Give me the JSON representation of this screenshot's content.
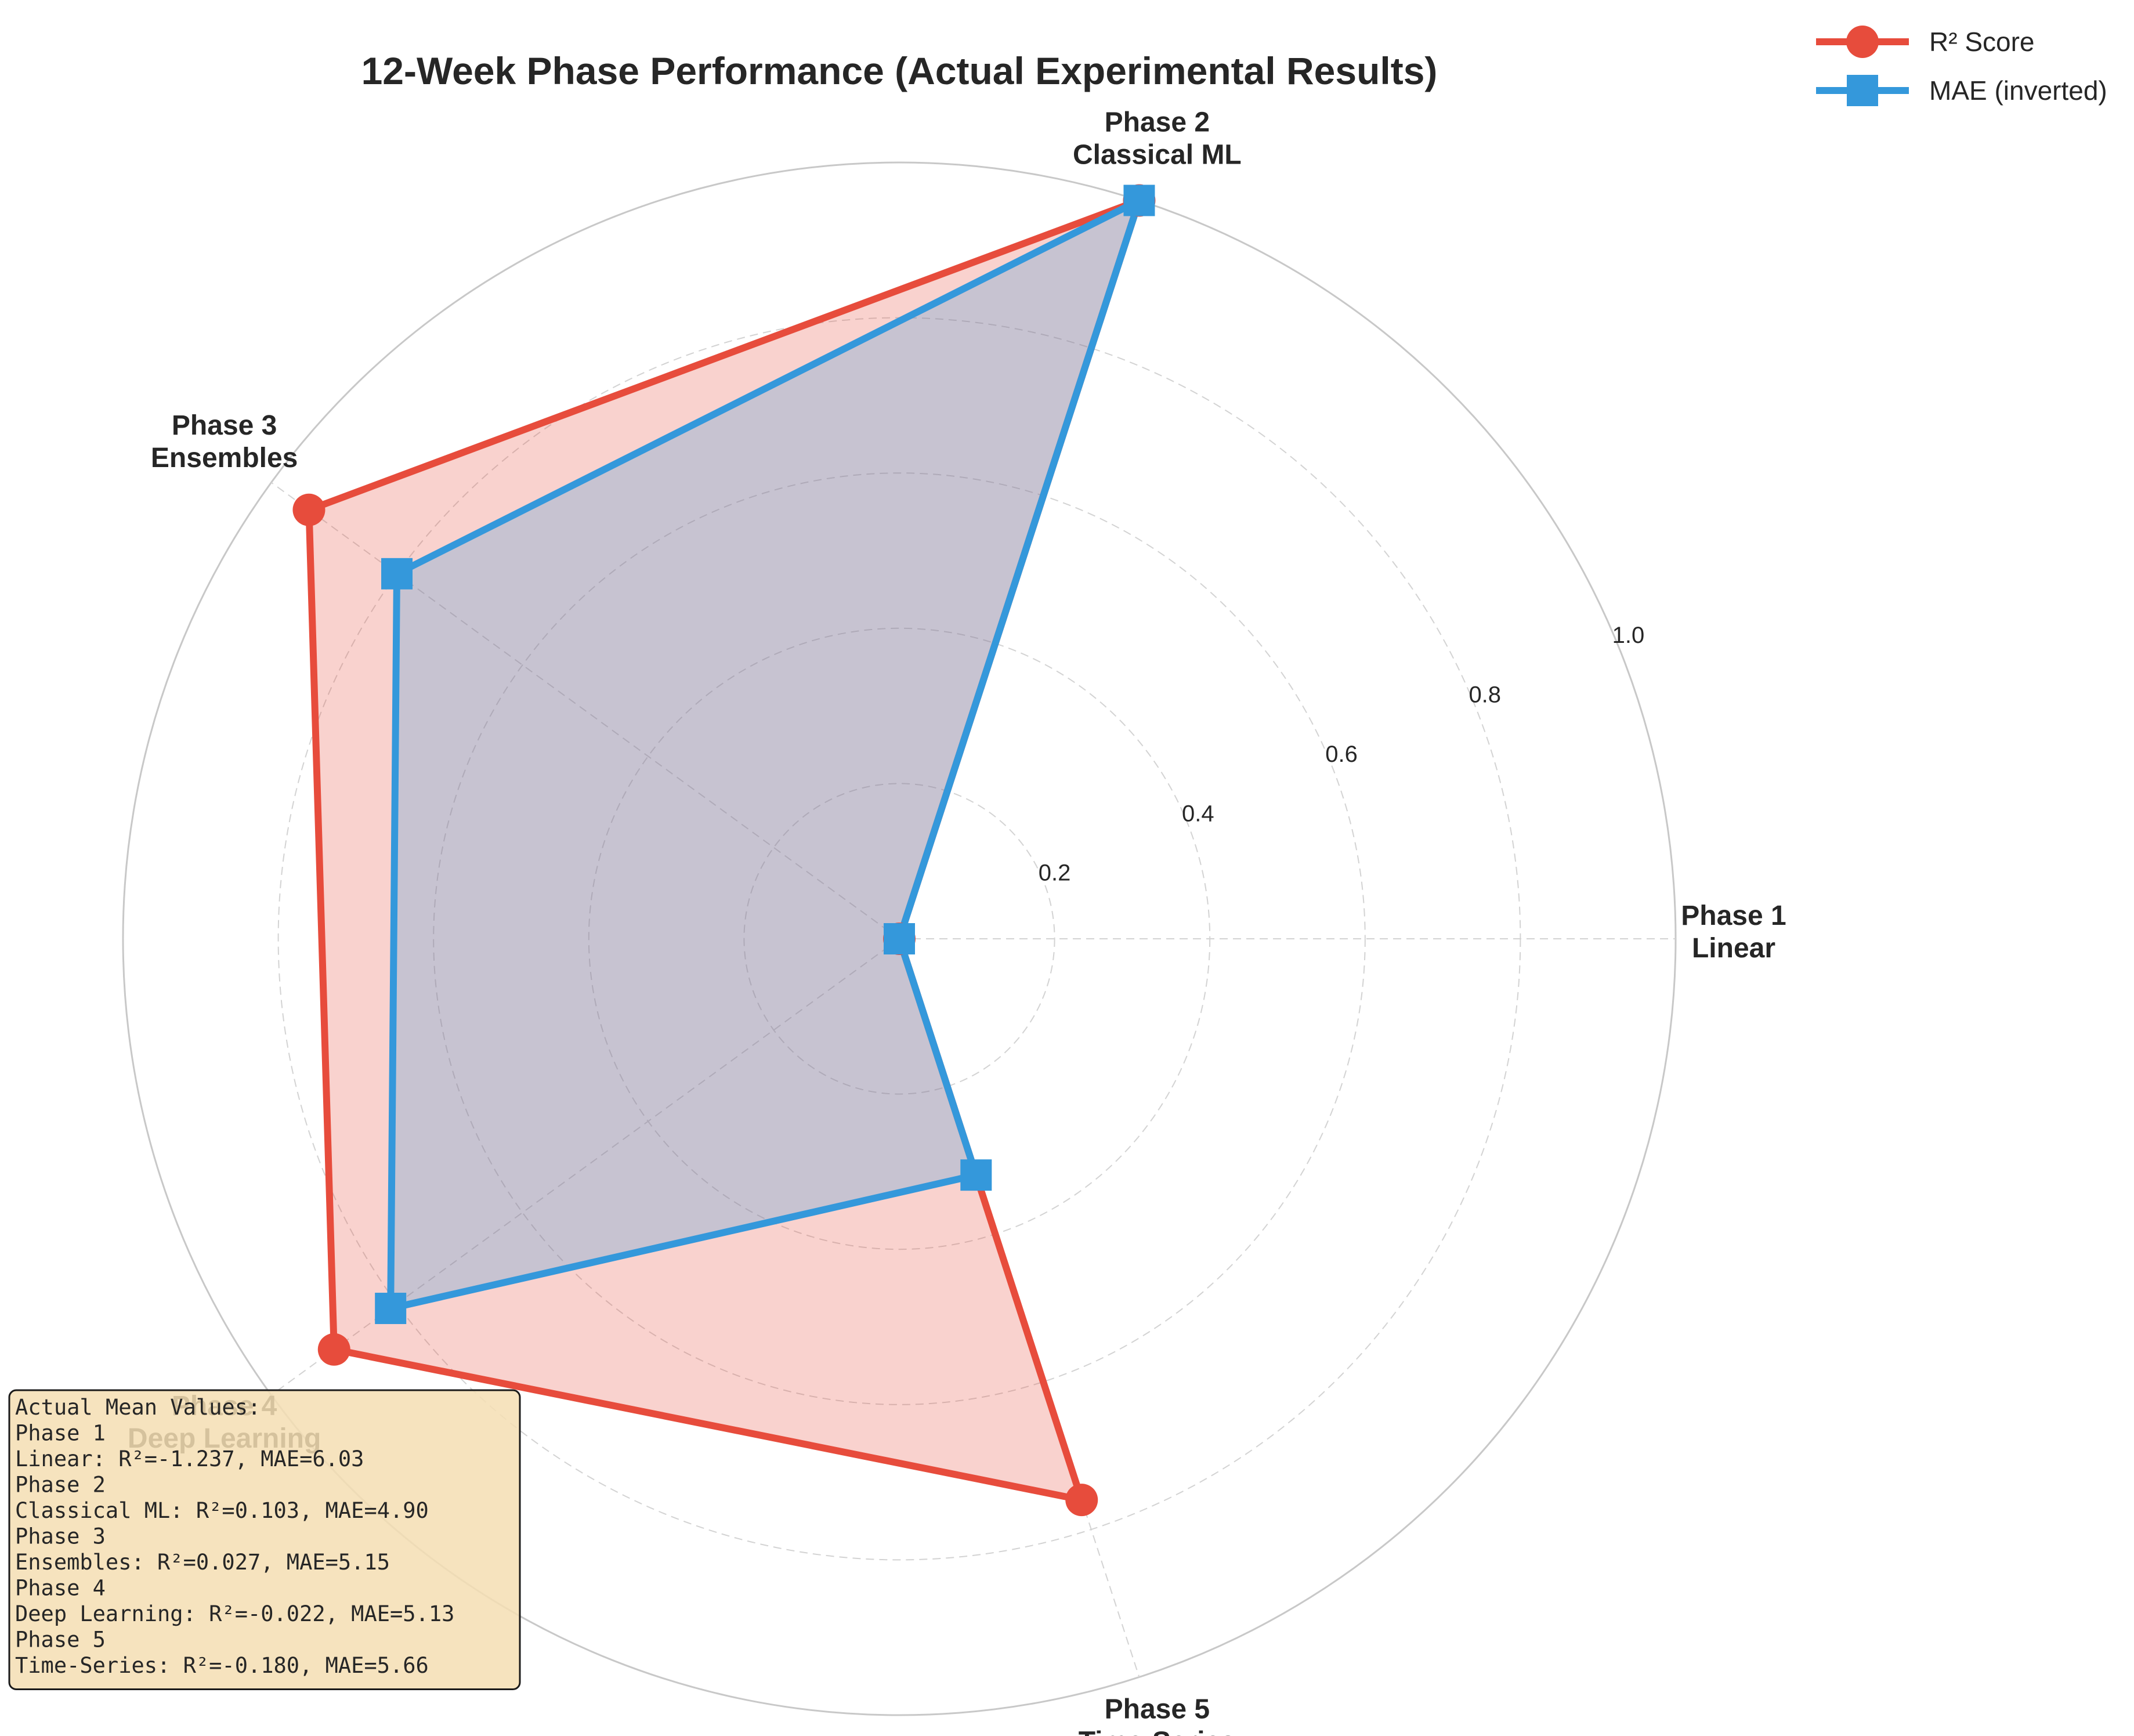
{
  "chart_data": {
    "type": "radar",
    "title": "12-Week Phase Performance (Actual Experimental Results)",
    "categories": [
      [
        "Phase 1",
        "Linear"
      ],
      [
        "Phase 2",
        "Classical ML"
      ],
      [
        "Phase 3",
        "Ensembles"
      ],
      [
        "Phase 4",
        "Deep Learning"
      ],
      [
        "Phase 5",
        "Time-Series"
      ]
    ],
    "radial_ticks": [
      "0.2",
      "0.4",
      "0.6",
      "0.8",
      "1.0"
    ],
    "radial_tick_values": [
      0.2,
      0.4,
      0.6,
      0.8,
      1.0
    ],
    "rlim": [
      0,
      1.0
    ],
    "grid": true,
    "legend_position": "top-right",
    "series": [
      {
        "name": "R² Score",
        "marker": "circle",
        "color": "#e74c3c",
        "values": [
          0.0,
          1.0,
          0.94,
          0.9,
          0.76
        ]
      },
      {
        "name": "MAE (inverted)",
        "marker": "square",
        "color": "#3498db",
        "values": [
          0.0,
          1.0,
          0.8,
          0.81,
          0.32
        ]
      }
    ],
    "annotation": {
      "lines": [
        "Actual Mean Values:",
        "Phase 1",
        "Linear: R²=-1.237, MAE=6.03",
        "Phase 2",
        "Classical ML: R²=0.103, MAE=4.90",
        "Phase 3",
        "Ensembles: R²=0.027, MAE=5.15",
        "Phase 4",
        "Deep Learning: R²=-0.022, MAE=5.13",
        "Phase 5",
        "Time-Series: R²=-0.180, MAE=5.66"
      ],
      "background": "#f5deb3"
    }
  }
}
